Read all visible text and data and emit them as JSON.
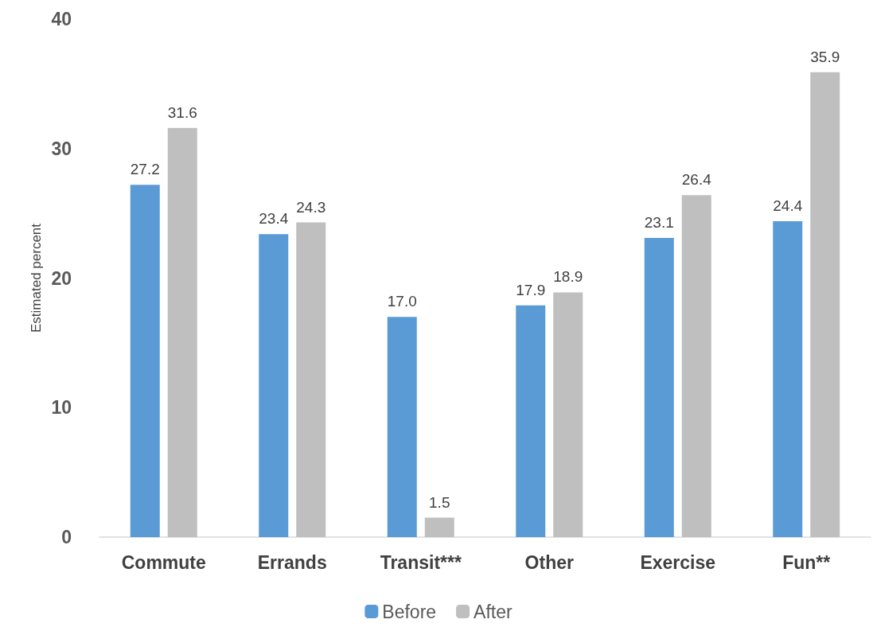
{
  "chart_data": {
    "type": "bar",
    "ylabel": "Estimated percent",
    "categories": [
      "Commute",
      "Errands",
      "Transit***",
      "Other",
      "Exercise",
      "Fun**"
    ],
    "series": [
      {
        "name": "Before",
        "color": "#5b9bd5",
        "values": [
          27.2,
          23.4,
          17.0,
          17.9,
          23.1,
          24.4
        ],
        "value_labels": [
          "27.2",
          "23.4",
          "17.0",
          "17.9",
          "23.1",
          "24.4"
        ]
      },
      {
        "name": "After",
        "color": "#bfbfbf",
        "values": [
          31.6,
          24.3,
          1.5,
          18.9,
          26.4,
          35.9
        ],
        "value_labels": [
          "31.6",
          "24.3",
          "1.5",
          "18.9",
          "26.4",
          "35.9"
        ]
      }
    ],
    "ylim": [
      0,
      40
    ],
    "yticks": [
      0,
      10,
      20,
      30,
      40
    ],
    "grid": false,
    "legend": "bottom"
  }
}
